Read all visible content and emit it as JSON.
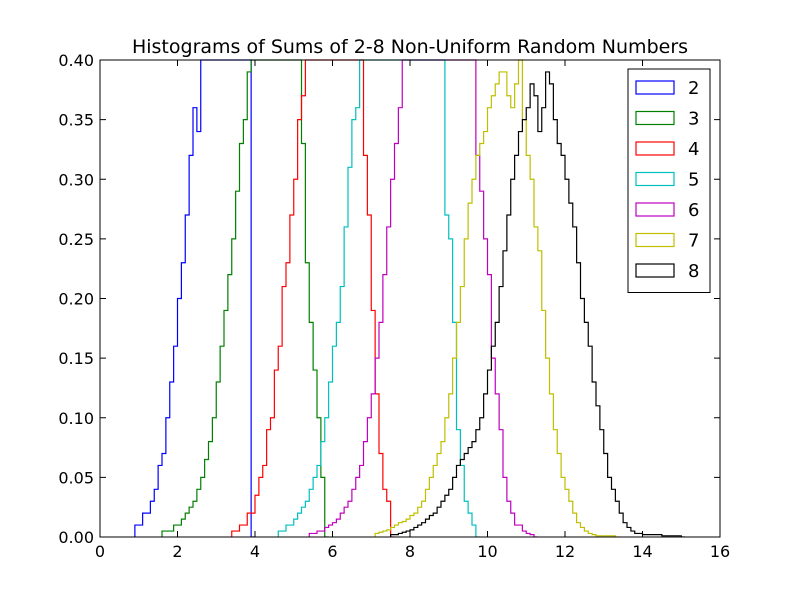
{
  "chart_data": {
    "type": "histogram-step",
    "title": "Histograms of Sums of 2-8 Non-Uniform Random Numbers",
    "xlabel": "",
    "ylabel": "",
    "xlim": [
      0,
      16
    ],
    "ylim": [
      0,
      0.4
    ],
    "xticks": [
      "0",
      "2",
      "4",
      "6",
      "8",
      "10",
      "12",
      "14",
      "16"
    ],
    "yticks": [
      "0.00",
      "0.05",
      "0.10",
      "0.15",
      "0.20",
      "0.25",
      "0.30",
      "0.35",
      "0.40"
    ],
    "grid": false,
    "legend": "top-right",
    "series": [
      {
        "name": "2",
        "color": "#0000ff",
        "edges": [
          0.9,
          1.0,
          1.1,
          1.2,
          1.3,
          1.4,
          1.5,
          1.6,
          1.7,
          1.8,
          1.9,
          2.0,
          2.1,
          2.2,
          2.3,
          2.4,
          2.5,
          2.6,
          2.7,
          2.8,
          2.9,
          3.0,
          3.1,
          3.2,
          3.3,
          3.4,
          3.5,
          3.6,
          3.7,
          3.8,
          3.9,
          4.0
        ],
        "values": [
          0.01,
          0.01,
          0.02,
          0.02,
          0.03,
          0.04,
          0.06,
          0.07,
          0.1,
          0.13,
          0.16,
          0.2,
          0.23,
          0.27,
          0.32,
          0.36,
          0.34,
          0.4,
          0.4,
          0.4,
          0.4,
          0.4,
          0.4,
          0.4,
          0.4,
          0.4,
          0.4,
          0.4,
          0.4,
          0.4,
          0.0
        ]
      },
      {
        "name": "3",
        "color": "#008000",
        "edges": [
          1.6,
          1.7,
          1.8,
          1.9,
          2.0,
          2.1,
          2.2,
          2.3,
          2.4,
          2.5,
          2.6,
          2.7,
          2.8,
          2.9,
          3.0,
          3.1,
          3.2,
          3.3,
          3.4,
          3.5,
          3.6,
          3.7,
          3.8,
          3.9,
          4.0,
          4.1,
          4.2,
          4.3,
          4.4,
          4.5,
          4.6,
          4.7,
          4.8,
          4.9,
          5.0,
          5.1,
          5.2,
          5.3,
          5.4,
          5.5,
          5.6,
          5.7,
          5.8,
          5.9
        ],
        "values": [
          0.005,
          0.005,
          0.005,
          0.01,
          0.01,
          0.015,
          0.02,
          0.025,
          0.03,
          0.04,
          0.05,
          0.065,
          0.08,
          0.1,
          0.13,
          0.16,
          0.19,
          0.22,
          0.25,
          0.29,
          0.33,
          0.35,
          0.39,
          0.4,
          0.4,
          0.4,
          0.4,
          0.4,
          0.4,
          0.4,
          0.4,
          0.4,
          0.4,
          0.4,
          0.4,
          0.4,
          0.33,
          0.23,
          0.18,
          0.14,
          0.1,
          0.05,
          0.0
        ]
      },
      {
        "name": "4",
        "color": "#ff0000",
        "edges": [
          3.4,
          3.5,
          3.6,
          3.7,
          3.8,
          3.9,
          4.0,
          4.1,
          4.2,
          4.3,
          4.4,
          4.5,
          4.6,
          4.7,
          4.8,
          4.9,
          5.0,
          5.1,
          5.2,
          5.3,
          5.4,
          5.5,
          5.6,
          5.7,
          5.8,
          5.9,
          6.0,
          6.1,
          6.2,
          6.3,
          6.4,
          6.5,
          6.6,
          6.7,
          6.8,
          6.9,
          7.0,
          7.1,
          7.2,
          7.3,
          7.4,
          7.5,
          7.6
        ],
        "values": [
          0.005,
          0.005,
          0.01,
          0.01,
          0.02,
          0.02,
          0.035,
          0.05,
          0.06,
          0.09,
          0.1,
          0.14,
          0.16,
          0.21,
          0.23,
          0.27,
          0.3,
          0.35,
          0.37,
          0.4,
          0.4,
          0.4,
          0.4,
          0.4,
          0.4,
          0.4,
          0.4,
          0.4,
          0.4,
          0.4,
          0.4,
          0.4,
          0.4,
          0.4,
          0.32,
          0.27,
          0.19,
          0.12,
          0.07,
          0.04,
          0.03,
          0.0
        ]
      },
      {
        "name": "5",
        "color": "#00bfbf",
        "edges": [
          4.6,
          4.7,
          4.8,
          4.9,
          5.0,
          5.1,
          5.2,
          5.3,
          5.4,
          5.5,
          5.6,
          5.7,
          5.8,
          5.9,
          6.0,
          6.1,
          6.2,
          6.3,
          6.4,
          6.5,
          6.6,
          6.7,
          6.8,
          6.9,
          7.0,
          7.1,
          7.2,
          7.3,
          7.4,
          7.5,
          7.6,
          7.7,
          7.8,
          7.9,
          8.0,
          8.1,
          8.2,
          8.3,
          8.4,
          8.5,
          8.6,
          8.7,
          8.8,
          8.9,
          9.0,
          9.1,
          9.2,
          9.3,
          9.4,
          9.5,
          9.6,
          9.7,
          9.8
        ],
        "values": [
          0.005,
          0.005,
          0.01,
          0.01,
          0.015,
          0.02,
          0.025,
          0.03,
          0.04,
          0.05,
          0.06,
          0.08,
          0.1,
          0.13,
          0.16,
          0.18,
          0.21,
          0.26,
          0.31,
          0.35,
          0.36,
          0.4,
          0.4,
          0.4,
          0.4,
          0.4,
          0.4,
          0.4,
          0.4,
          0.4,
          0.4,
          0.4,
          0.4,
          0.4,
          0.4,
          0.4,
          0.4,
          0.4,
          0.4,
          0.4,
          0.4,
          0.4,
          0.4,
          0.27,
          0.25,
          0.18,
          0.09,
          0.06,
          0.03,
          0.02,
          0.01,
          0.0
        ]
      },
      {
        "name": "6",
        "color": "#bf00bf",
        "edges": [
          5.4,
          5.5,
          5.6,
          5.7,
          5.8,
          5.9,
          6.0,
          6.1,
          6.2,
          6.3,
          6.4,
          6.5,
          6.6,
          6.7,
          6.8,
          6.9,
          7.0,
          7.1,
          7.2,
          7.3,
          7.4,
          7.5,
          7.6,
          7.7,
          7.8,
          7.9,
          8.0,
          8.1,
          8.2,
          8.3,
          8.4,
          8.5,
          8.6,
          8.7,
          8.8,
          8.9,
          9.0,
          9.1,
          9.2,
          9.3,
          9.4,
          9.5,
          9.6,
          9.7,
          9.8,
          9.9,
          10.0,
          10.1,
          10.2,
          10.3,
          10.4,
          10.5,
          10.6,
          10.7,
          10.8,
          10.9,
          11.0,
          11.1,
          11.2,
          11.3
        ],
        "values": [
          0.003,
          0.003,
          0.005,
          0.005,
          0.008,
          0.01,
          0.012,
          0.015,
          0.02,
          0.025,
          0.03,
          0.04,
          0.05,
          0.06,
          0.08,
          0.1,
          0.12,
          0.15,
          0.18,
          0.22,
          0.26,
          0.3,
          0.33,
          0.36,
          0.4,
          0.4,
          0.4,
          0.4,
          0.4,
          0.4,
          0.4,
          0.4,
          0.4,
          0.4,
          0.4,
          0.4,
          0.4,
          0.4,
          0.4,
          0.4,
          0.4,
          0.4,
          0.4,
          0.32,
          0.29,
          0.25,
          0.22,
          0.15,
          0.12,
          0.09,
          0.05,
          0.03,
          0.02,
          0.01,
          0.01,
          0.005,
          0.003,
          0.002,
          0.0
        ]
      },
      {
        "name": "7",
        "color": "#bfbf00",
        "edges": [
          7.1,
          7.2,
          7.3,
          7.4,
          7.5,
          7.6,
          7.7,
          7.8,
          7.9,
          8.0,
          8.1,
          8.2,
          8.3,
          8.4,
          8.5,
          8.6,
          8.7,
          8.8,
          8.9,
          9.0,
          9.1,
          9.2,
          9.3,
          9.4,
          9.5,
          9.6,
          9.7,
          9.8,
          9.9,
          10.0,
          10.1,
          10.2,
          10.3,
          10.4,
          10.5,
          10.6,
          10.7,
          10.8,
          10.9,
          11.0,
          11.1,
          11.2,
          11.3,
          11.4,
          11.5,
          11.6,
          11.7,
          11.8,
          11.9,
          12.0,
          12.1,
          12.2,
          12.3,
          12.4,
          12.5,
          12.6,
          12.7,
          12.8,
          12.9,
          13.0,
          13.1,
          13.2,
          13.3,
          13.4
        ],
        "values": [
          0.003,
          0.004,
          0.005,
          0.006,
          0.008,
          0.01,
          0.012,
          0.013,
          0.015,
          0.018,
          0.02,
          0.025,
          0.03,
          0.04,
          0.05,
          0.06,
          0.07,
          0.08,
          0.1,
          0.12,
          0.15,
          0.18,
          0.21,
          0.25,
          0.28,
          0.3,
          0.32,
          0.33,
          0.34,
          0.36,
          0.37,
          0.38,
          0.39,
          0.39,
          0.37,
          0.36,
          0.38,
          0.4,
          0.35,
          0.32,
          0.3,
          0.26,
          0.24,
          0.19,
          0.15,
          0.12,
          0.09,
          0.07,
          0.05,
          0.04,
          0.03,
          0.02,
          0.012,
          0.008,
          0.005,
          0.003,
          0.002,
          0.001,
          0.001,
          0.001,
          0.001,
          0.001,
          0.0
        ]
      },
      {
        "name": "8",
        "color": "#000000",
        "edges": [
          7.5,
          7.6,
          7.7,
          7.8,
          7.9,
          8.0,
          8.1,
          8.2,
          8.3,
          8.4,
          8.5,
          8.6,
          8.7,
          8.8,
          8.9,
          9.0,
          9.1,
          9.2,
          9.3,
          9.4,
          9.5,
          9.6,
          9.7,
          9.8,
          9.9,
          10.0,
          10.1,
          10.2,
          10.3,
          10.4,
          10.5,
          10.6,
          10.7,
          10.8,
          10.9,
          11.0,
          11.1,
          11.2,
          11.3,
          11.4,
          11.5,
          11.6,
          11.7,
          11.8,
          11.9,
          12.0,
          12.1,
          12.2,
          12.3,
          12.4,
          12.5,
          12.6,
          12.7,
          12.8,
          12.9,
          13.0,
          13.1,
          13.2,
          13.3,
          13.4,
          13.5,
          13.6,
          13.7,
          13.8,
          13.9,
          14.0,
          14.1,
          14.2,
          14.3,
          14.4,
          14.5,
          14.6,
          14.7,
          14.8,
          14.9,
          15.0,
          15.1
        ],
        "values": [
          0.002,
          0.002,
          0.003,
          0.004,
          0.005,
          0.006,
          0.008,
          0.01,
          0.012,
          0.015,
          0.018,
          0.02,
          0.025,
          0.03,
          0.035,
          0.04,
          0.05,
          0.06,
          0.065,
          0.07,
          0.075,
          0.08,
          0.09,
          0.1,
          0.12,
          0.14,
          0.16,
          0.18,
          0.21,
          0.24,
          0.27,
          0.3,
          0.32,
          0.34,
          0.35,
          0.36,
          0.38,
          0.37,
          0.34,
          0.36,
          0.39,
          0.38,
          0.35,
          0.33,
          0.32,
          0.3,
          0.28,
          0.26,
          0.23,
          0.2,
          0.18,
          0.16,
          0.13,
          0.11,
          0.09,
          0.07,
          0.05,
          0.04,
          0.03,
          0.02,
          0.012,
          0.008,
          0.005,
          0.003,
          0.003,
          0.002,
          0.002,
          0.002,
          0.002,
          0.002,
          0.001,
          0.001,
          0.001,
          0.001,
          0.001,
          0.0
        ]
      }
    ]
  }
}
